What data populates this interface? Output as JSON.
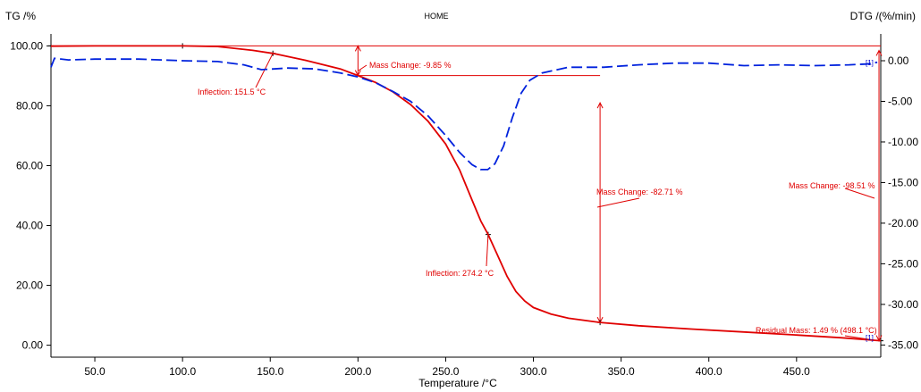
{
  "chart_data": {
    "type": "line",
    "title": "HOME",
    "xlabel": "Temperature /°C",
    "ylabel_left": "TG /%",
    "ylabel_right": "DTG /(%/min)",
    "xlim": [
      25,
      498
    ],
    "ylim_left": [
      -4,
      104
    ],
    "ylim_right": [
      -36.5,
      3.3
    ],
    "x_ticks": [
      "50.0",
      "100.0",
      "150.0",
      "200.0",
      "250.0",
      "300.0",
      "350.0",
      "400.0",
      "450.0"
    ],
    "x_tick_values": [
      50,
      100,
      150,
      200,
      250,
      300,
      350,
      400,
      450
    ],
    "y_left_ticks": [
      "0.00",
      "20.00",
      "40.00",
      "60.00",
      "80.00",
      "100.00"
    ],
    "y_left_tick_values": [
      0,
      20,
      40,
      60,
      80,
      100
    ],
    "y_right_ticks": [
      "0.00",
      "-5.00",
      "-10.00",
      "-15.00",
      "-20.00",
      "-25.00",
      "-30.00",
      "-35.00"
    ],
    "y_right_tick_values": [
      0,
      -5,
      -10,
      -15,
      -20,
      -25,
      -30,
      -35
    ],
    "series": [
      {
        "axis": "left",
        "color": "#e00000",
        "style": "solid",
        "points": [
          [
            25,
            99.9
          ],
          [
            50,
            100
          ],
          [
            75,
            100
          ],
          [
            100,
            100
          ],
          [
            120,
            99.8
          ],
          [
            140,
            98.5
          ],
          [
            151.5,
            97.5
          ],
          [
            170,
            95.2
          ],
          [
            190,
            92.3
          ],
          [
            200,
            90.1
          ],
          [
            210,
            87.8
          ],
          [
            220,
            84.6
          ],
          [
            230,
            80.4
          ],
          [
            240,
            74.8
          ],
          [
            250,
            67.2
          ],
          [
            258,
            58.5
          ],
          [
            265,
            48.5
          ],
          [
            270,
            41.5
          ],
          [
            274.2,
            37.0
          ],
          [
            280,
            29.5
          ],
          [
            285,
            23.0
          ],
          [
            290,
            18.0
          ],
          [
            295,
            14.8
          ],
          [
            300,
            12.6
          ],
          [
            310,
            10.4
          ],
          [
            320,
            9.0
          ],
          [
            338,
            7.6
          ],
          [
            360,
            6.5
          ],
          [
            390,
            5.4
          ],
          [
            420,
            4.4
          ],
          [
            450,
            3.4
          ],
          [
            475,
            2.5
          ],
          [
            498,
            1.5
          ]
        ]
      },
      {
        "axis": "right",
        "color": "#0022dd",
        "style": "dashed",
        "points": [
          [
            25,
            -0.8
          ],
          [
            27,
            0.3
          ],
          [
            35,
            0.1
          ],
          [
            50,
            0.2
          ],
          [
            75,
            0.2
          ],
          [
            100,
            0.0
          ],
          [
            120,
            -0.1
          ],
          [
            135,
            -0.5
          ],
          [
            145,
            -1.1
          ],
          [
            160,
            -0.9
          ],
          [
            175,
            -1.0
          ],
          [
            190,
            -1.5
          ],
          [
            200,
            -2.0
          ],
          [
            210,
            -2.7
          ],
          [
            220,
            -3.8
          ],
          [
            230,
            -5.0
          ],
          [
            240,
            -6.8
          ],
          [
            250,
            -9.2
          ],
          [
            258,
            -11.3
          ],
          [
            265,
            -12.8
          ],
          [
            270,
            -13.4
          ],
          [
            274,
            -13.4
          ],
          [
            278,
            -12.7
          ],
          [
            283,
            -10.5
          ],
          [
            288,
            -7.0
          ],
          [
            293,
            -4.0
          ],
          [
            298,
            -2.4
          ],
          [
            305,
            -1.5
          ],
          [
            320,
            -0.8
          ],
          [
            340,
            -0.8
          ],
          [
            360,
            -0.5
          ],
          [
            380,
            -0.3
          ],
          [
            400,
            -0.3
          ],
          [
            420,
            -0.6
          ],
          [
            440,
            -0.5
          ],
          [
            460,
            -0.6
          ],
          [
            480,
            -0.5
          ],
          [
            490,
            -0.4
          ],
          [
            496,
            -0.2
          ]
        ]
      }
    ],
    "annotations": {
      "inflection_1": "Inflection: 151.5 °C",
      "inflection_2": "Inflection: 274.2 °C",
      "mass_change_1": "Mass Change: -9.85 %",
      "mass_change_2": "Mass Change: -82.71 %",
      "mass_change_3": "Mass Change: -98.51 %",
      "residual_mass": "Residual Mass: 1.49 % (498.1 °C)",
      "marker_dtg": "[1]",
      "marker_tg": "[1]"
    },
    "grid": false
  }
}
